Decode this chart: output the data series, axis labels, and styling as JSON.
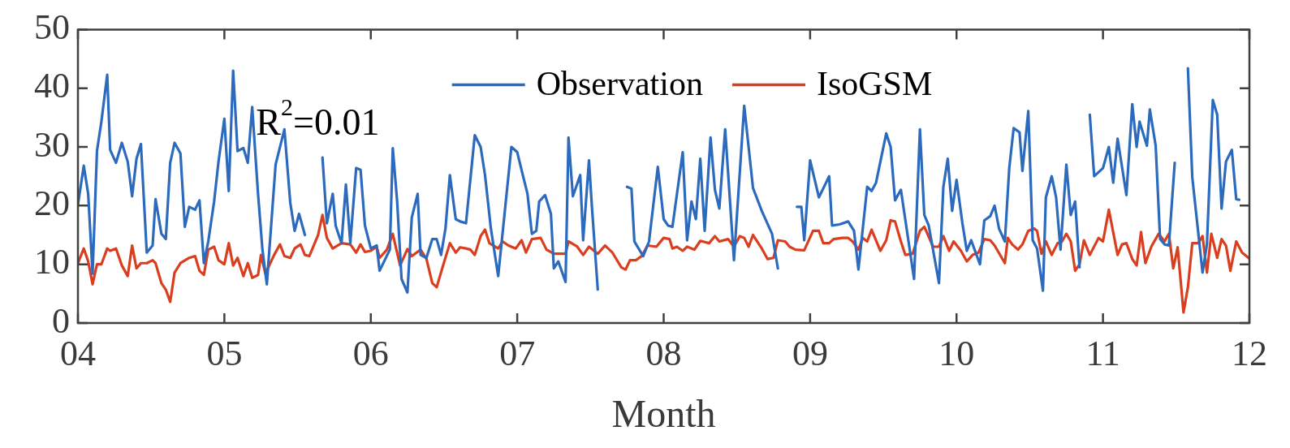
{
  "chart_data": {
    "type": "line",
    "xlabel": "Month",
    "annotations": [
      "R$^{2}$=0.01"
    ],
    "legend": "top",
    "grid": false,
    "marker": "none",
    "line_style": "solid",
    "xlim": [
      4,
      12
    ],
    "xticks": [
      {
        "value": 4,
        "label": "04"
      },
      {
        "value": 5,
        "label": "05"
      },
      {
        "value": 6,
        "label": "06"
      },
      {
        "value": 7,
        "label": "07"
      },
      {
        "value": 8,
        "label": "08"
      },
      {
        "value": 9,
        "label": "09"
      },
      {
        "value": 10,
        "label": "10"
      },
      {
        "value": 11,
        "label": "11"
      },
      {
        "value": 12,
        "label": "12"
      }
    ],
    "ylim": [
      0,
      50
    ],
    "yticks": [
      0,
      10,
      20,
      30,
      40,
      50
    ],
    "series": [
      {
        "name": "Observation",
        "color": "#2c6abe",
        "x": [
          4.0,
          4.04,
          4.07,
          4.1,
          4.13,
          4.16,
          4.2,
          4.22,
          4.26,
          4.3,
          4.34,
          4.37,
          4.4,
          4.43,
          4.47,
          4.51,
          4.53,
          4.57,
          4.6,
          4.63,
          4.66,
          4.7,
          4.73,
          4.76,
          4.8,
          4.83,
          4.86,
          4.89,
          4.93,
          4.96,
          5.0,
          5.03,
          5.06,
          5.09,
          5.13,
          5.16,
          5.19,
          5.23,
          5.26,
          5.29,
          5.35,
          5.41,
          5.45,
          5.48,
          5.51,
          5.55,
          5.61,
          5.67,
          5.7,
          5.74,
          5.76,
          5.8,
          5.83,
          5.86,
          5.9,
          5.93,
          5.96,
          6.0,
          6.04,
          6.06,
          6.13,
          6.15,
          6.18,
          6.21,
          6.25,
          6.28,
          6.32,
          6.34,
          6.38,
          6.42,
          6.45,
          6.48,
          6.51,
          6.54,
          6.58,
          6.61,
          6.65,
          6.71,
          6.75,
          6.78,
          6.82,
          6.87,
          6.96,
          7.0,
          7.04,
          7.07,
          7.1,
          7.13,
          7.15,
          7.19,
          7.23,
          7.25,
          7.28,
          7.33,
          7.35,
          7.38,
          7.43,
          7.45,
          7.49,
          7.51,
          7.55,
          7.65,
          7.75,
          7.78,
          7.8,
          7.86,
          7.9,
          7.96,
          8.0,
          8.03,
          8.06,
          8.13,
          8.16,
          8.19,
          8.22,
          8.25,
          8.28,
          8.32,
          8.35,
          8.38,
          8.42,
          8.48,
          8.55,
          8.61,
          8.67,
          8.74,
          8.78,
          8.85,
          8.91,
          8.94,
          8.96,
          9.0,
          9.06,
          9.13,
          9.15,
          9.2,
          9.26,
          9.3,
          9.33,
          9.39,
          9.42,
          9.45,
          9.52,
          9.55,
          9.58,
          9.62,
          9.71,
          9.75,
          9.78,
          9.81,
          9.88,
          9.91,
          9.94,
          9.97,
          10.0,
          10.04,
          10.07,
          10.1,
          10.16,
          10.19,
          10.23,
          10.26,
          10.29,
          10.33,
          10.36,
          10.39,
          10.43,
          10.45,
          10.49,
          10.52,
          10.55,
          10.59,
          10.61,
          10.65,
          10.68,
          10.71,
          10.75,
          10.78,
          10.81,
          10.84,
          10.88,
          10.91,
          10.94,
          11.0,
          11.04,
          11.07,
          11.1,
          11.16,
          11.2,
          11.23,
          11.25,
          11.3,
          11.32,
          11.36,
          11.39,
          11.42,
          11.45,
          11.49,
          11.54,
          11.58,
          11.61,
          11.68,
          11.71,
          11.75,
          11.78,
          11.81,
          11.84,
          11.88,
          11.91,
          11.93
        ],
        "values": [
          20.2,
          26.8,
          22.0,
          8.4,
          29.3,
          34.3,
          42.3,
          29.5,
          27.3,
          30.7,
          27.5,
          21.6,
          28.0,
          30.5,
          12.0,
          13.2,
          21.1,
          15.2,
          14.3,
          27.3,
          30.7,
          28.9,
          16.4,
          19.8,
          19.3,
          20.9,
          10.2,
          13.9,
          20.7,
          27.5,
          34.8,
          22.5,
          43.0,
          29.3,
          29.8,
          27.3,
          36.8,
          22.0,
          12.5,
          6.6,
          27.0,
          33.0,
          20.5,
          15.7,
          18.6,
          15.0,
          null,
          28.2,
          17.0,
          22.0,
          16.6,
          13.6,
          23.6,
          13.6,
          26.4,
          26.1,
          16.6,
          12.7,
          13.2,
          8.9,
          12.5,
          29.8,
          20.7,
          7.5,
          5.2,
          18.0,
          22.0,
          11.6,
          11.1,
          14.3,
          14.3,
          11.6,
          16.1,
          25.2,
          17.7,
          17.3,
          17.0,
          32.0,
          30.0,
          25.2,
          16.1,
          8.0,
          30.0,
          29.1,
          25.0,
          22.0,
          15.2,
          15.7,
          20.7,
          21.8,
          18.6,
          9.3,
          10.5,
          7.0,
          31.6,
          21.6,
          25.2,
          14.1,
          27.7,
          19.8,
          5.7,
          null,
          23.2,
          22.9,
          13.9,
          11.4,
          13.9,
          26.6,
          17.7,
          16.6,
          16.4,
          29.1,
          14.1,
          20.7,
          17.7,
          28.0,
          15.7,
          31.6,
          22.7,
          19.5,
          33.0,
          10.7,
          37.0,
          23.0,
          19.1,
          15.2,
          9.3,
          null,
          19.8,
          19.8,
          14.1,
          27.7,
          21.4,
          25.0,
          16.6,
          16.8,
          17.3,
          15.7,
          9.1,
          23.2,
          22.5,
          23.9,
          32.3,
          30.0,
          20.9,
          22.7,
          7.5,
          33.0,
          18.4,
          16.6,
          6.8,
          23.2,
          28.0,
          19.1,
          24.4,
          17.0,
          12.3,
          14.1,
          10.0,
          17.5,
          18.2,
          20.0,
          16.1,
          13.9,
          26.4,
          33.2,
          32.5,
          25.9,
          36.1,
          14.1,
          12.7,
          5.5,
          21.4,
          25.0,
          21.4,
          12.5,
          27.0,
          18.4,
          20.7,
          9.5,
          null,
          35.5,
          25.0,
          26.4,
          30.0,
          23.9,
          31.4,
          21.8,
          37.3,
          30.0,
          34.3,
          30.2,
          36.4,
          30.2,
          14.3,
          13.4,
          13.2,
          27.3,
          null,
          43.4,
          24.8,
          8.6,
          13.4,
          38.0,
          35.5,
          19.5,
          27.5,
          29.5,
          21.1,
          21.0
        ]
      },
      {
        "name": "IsoGSM",
        "color": "#d93e1f",
        "x": [
          4.0,
          4.04,
          4.07,
          4.1,
          4.13,
          4.16,
          4.2,
          4.22,
          4.26,
          4.3,
          4.34,
          4.37,
          4.4,
          4.43,
          4.47,
          4.51,
          4.53,
          4.57,
          4.6,
          4.63,
          4.66,
          4.7,
          4.76,
          4.8,
          4.83,
          4.86,
          4.89,
          4.93,
          4.96,
          5.0,
          5.03,
          5.06,
          5.09,
          5.13,
          5.16,
          5.19,
          5.23,
          5.25,
          5.28,
          5.34,
          5.38,
          5.41,
          5.45,
          5.48,
          5.52,
          5.55,
          5.58,
          5.64,
          5.67,
          5.7,
          5.74,
          5.8,
          5.86,
          5.9,
          5.93,
          5.96,
          6.0,
          6.04,
          6.06,
          6.11,
          6.15,
          6.2,
          6.25,
          6.28,
          6.34,
          6.38,
          6.42,
          6.45,
          6.49,
          6.54,
          6.58,
          6.61,
          6.65,
          6.68,
          6.71,
          6.75,
          6.78,
          6.81,
          6.87,
          6.9,
          6.94,
          6.99,
          7.03,
          7.06,
          7.1,
          7.16,
          7.2,
          7.25,
          7.33,
          7.35,
          7.41,
          7.45,
          7.49,
          7.55,
          7.6,
          7.65,
          7.71,
          7.74,
          7.77,
          7.81,
          7.85,
          7.89,
          7.95,
          8.0,
          8.04,
          8.06,
          8.09,
          8.13,
          8.16,
          8.21,
          8.25,
          8.31,
          8.35,
          8.38,
          8.44,
          8.48,
          8.52,
          8.55,
          8.58,
          8.61,
          8.67,
          8.71,
          8.75,
          8.78,
          8.83,
          8.86,
          8.9,
          8.96,
          9.02,
          9.06,
          9.09,
          9.13,
          9.16,
          9.22,
          9.26,
          9.29,
          9.33,
          9.36,
          9.39,
          9.42,
          9.48,
          9.52,
          9.55,
          9.58,
          9.62,
          9.65,
          9.7,
          9.75,
          9.78,
          9.84,
          9.88,
          9.91,
          9.95,
          9.98,
          10.03,
          10.07,
          10.11,
          10.15,
          10.19,
          10.23,
          10.26,
          10.33,
          10.35,
          10.38,
          10.42,
          10.45,
          10.49,
          10.53,
          10.55,
          10.58,
          10.61,
          10.65,
          10.69,
          10.72,
          10.75,
          10.78,
          10.81,
          10.84,
          10.87,
          10.91,
          10.97,
          11.0,
          11.04,
          11.1,
          11.13,
          11.16,
          11.2,
          11.23,
          11.26,
          11.29,
          11.33,
          11.38,
          11.42,
          11.45,
          11.48,
          11.51,
          11.55,
          11.58,
          11.61,
          11.65,
          11.68,
          11.71,
          11.74,
          11.78,
          11.81,
          11.84,
          11.87,
          11.91,
          11.95,
          12.0
        ],
        "values": [
          10.2,
          12.7,
          10.5,
          6.6,
          10.0,
          10.0,
          12.7,
          12.3,
          12.7,
          9.8,
          8.0,
          13.2,
          9.3,
          10.2,
          10.2,
          10.7,
          10.2,
          6.8,
          5.7,
          3.6,
          8.6,
          10.2,
          11.1,
          11.4,
          8.9,
          8.2,
          12.5,
          13.0,
          10.7,
          10.0,
          13.6,
          9.8,
          11.1,
          8.0,
          10.2,
          7.7,
          8.2,
          11.6,
          8.4,
          11.6,
          13.4,
          11.4,
          11.1,
          12.7,
          13.4,
          11.6,
          11.4,
          15.0,
          18.4,
          14.5,
          12.7,
          13.6,
          13.4,
          12.0,
          13.4,
          12.1,
          12.3,
          13.0,
          11.1,
          12.5,
          15.2,
          9.8,
          12.6,
          11.4,
          12.5,
          10.9,
          6.8,
          6.1,
          9.5,
          13.6,
          12.0,
          12.9,
          12.7,
          12.5,
          11.6,
          14.8,
          15.9,
          13.6,
          12.7,
          13.9,
          13.2,
          12.7,
          14.1,
          12.0,
          14.3,
          14.5,
          12.5,
          11.8,
          11.8,
          13.9,
          13.0,
          11.6,
          13.0,
          11.8,
          13.2,
          12.0,
          9.5,
          9.1,
          10.7,
          10.7,
          11.4,
          13.2,
          13.0,
          14.5,
          14.3,
          12.7,
          13.0,
          12.3,
          13.0,
          12.5,
          14.0,
          13.6,
          14.8,
          13.9,
          14.3,
          13.0,
          14.8,
          14.5,
          13.0,
          15.0,
          12.7,
          10.9,
          11.1,
          14.1,
          13.9,
          13.0,
          12.5,
          12.4,
          15.7,
          15.7,
          13.6,
          13.6,
          14.3,
          14.5,
          14.5,
          13.9,
          12.5,
          14.5,
          13.9,
          15.9,
          12.3,
          14.1,
          17.5,
          17.3,
          13.9,
          11.6,
          11.8,
          15.7,
          16.4,
          13.0,
          13.0,
          14.8,
          12.3,
          13.9,
          12.3,
          10.5,
          11.6,
          12.0,
          14.3,
          14.1,
          13.2,
          10.2,
          14.5,
          13.4,
          12.5,
          13.4,
          15.7,
          16.1,
          15.7,
          11.8,
          13.9,
          11.6,
          13.6,
          13.9,
          15.2,
          13.9,
          8.9,
          10.0,
          14.1,
          11.6,
          14.5,
          13.9,
          19.3,
          11.6,
          13.4,
          13.6,
          10.9,
          9.8,
          15.5,
          10.2,
          13.0,
          15.2,
          13.9,
          15.2,
          9.3,
          12.9,
          1.8,
          6.1,
          13.6,
          13.6,
          14.8,
          8.6,
          15.2,
          11.1,
          14.3,
          13.2,
          8.9,
          13.9,
          12.0,
          11.0
        ]
      }
    ]
  }
}
